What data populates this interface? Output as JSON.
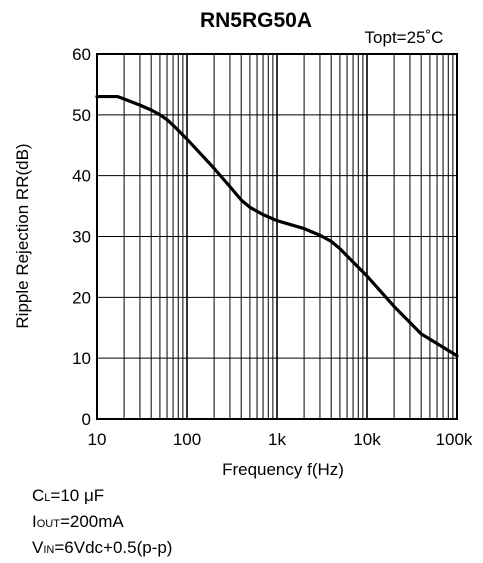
{
  "chart_data": {
    "type": "line",
    "title": "RN5RG50A",
    "condition": "Topt=25˚C",
    "xlabel": "Frequency f(Hz)",
    "ylabel": "Ripple Rejection RR(dB)",
    "xscale": "log",
    "xlim": [
      10,
      100000
    ],
    "ylim": [
      0,
      60
    ],
    "grid": true,
    "x_ticks": [
      {
        "value": 10,
        "label": "10"
      },
      {
        "value": 100,
        "label": "100"
      },
      {
        "value": 1000,
        "label": "1k"
      },
      {
        "value": 10000,
        "label": "10k"
      },
      {
        "value": 100000,
        "label": "100k"
      }
    ],
    "y_ticks": [
      0,
      10,
      20,
      30,
      40,
      50,
      60
    ],
    "series": [
      {
        "x": [
          10,
          13,
          17,
          20,
          30,
          40,
          50,
          60,
          70,
          100,
          150,
          200,
          300,
          400,
          500,
          700,
          1000,
          2000,
          3000,
          4000,
          5000,
          7000,
          10000,
          20000,
          40000,
          70000,
          100000
        ],
        "y": [
          53.0,
          53.0,
          53.0,
          52.6,
          51.6,
          50.8,
          50.0,
          49.2,
          48.3,
          46.0,
          43.2,
          41.2,
          38.2,
          36.0,
          34.8,
          33.6,
          32.6,
          31.3,
          30.2,
          29.2,
          28.0,
          25.8,
          23.5,
          18.5,
          14.0,
          11.8,
          10.4
        ]
      }
    ]
  },
  "notes": {
    "cl": {
      "main": "C",
      "sub": "L",
      "rest": "=10 μF"
    },
    "iout": {
      "main": "I",
      "sub": "OUT",
      "rest": "=200mA"
    },
    "vin": {
      "main": "V",
      "sub": "IN",
      "rest": "=6Vdc+0.5(p-p)"
    }
  }
}
